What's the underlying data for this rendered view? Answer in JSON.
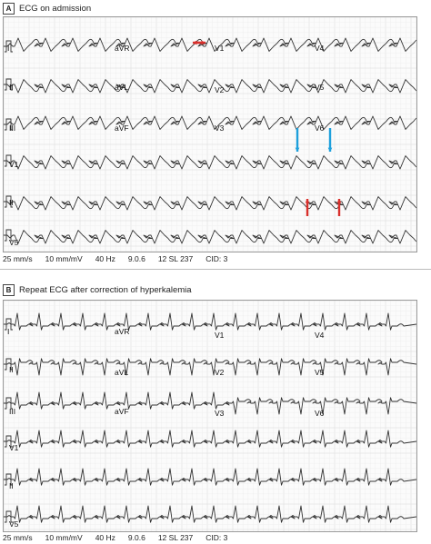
{
  "panels": [
    {
      "letter": "A",
      "title": "ECG on admission",
      "rows": [
        [
          "I",
          "aVR",
          "V1",
          "V4"
        ],
        [
          "II",
          "aVL",
          "V2",
          "V5"
        ],
        [
          "III",
          "aVF",
          "V3",
          "V6"
        ],
        [
          "V1"
        ],
        [
          "II"
        ],
        [
          "V5"
        ]
      ],
      "footer": [
        "25 mm/s",
        "10 mm/mV",
        "40 Hz",
        "9.0.6",
        "12 SL 237",
        "CID: 3"
      ]
    },
    {
      "letter": "B",
      "title": "Repeat ECG after correction of hyperkalemia",
      "rows": [
        [
          "I",
          "aVR",
          "V1",
          "V4"
        ],
        [
          "II",
          "aVL",
          "V2",
          "V5"
        ],
        [
          "III",
          "aVF",
          "V3",
          "V6"
        ],
        [
          "V1"
        ],
        [
          "II"
        ],
        [
          "V5"
        ]
      ],
      "footer": [
        "25 mm/s",
        "10 mm/mV",
        "40 Hz",
        "9.0.6",
        "12 SL 237",
        "CID: 3"
      ]
    }
  ],
  "annotations": {
    "red_color": "#d9302c",
    "blue_color": "#1ea0dc"
  }
}
